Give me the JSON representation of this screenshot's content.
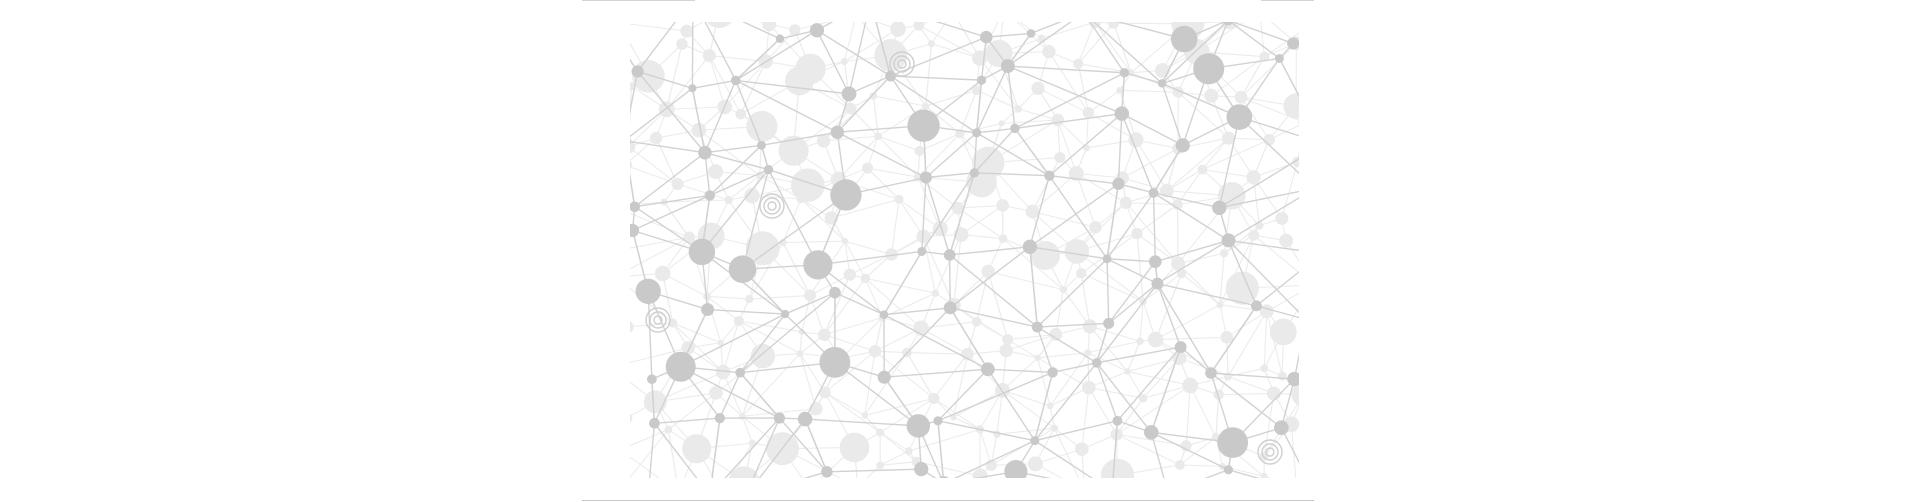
{
  "image": {
    "subject": "network-mesh-illustration",
    "colors": {
      "background": "#ffffff",
      "node": "#c9c9c9",
      "node_faint": "#eaeaea",
      "edge": "#d2d2d2",
      "edge_faint": "#ececec",
      "rule": "#d4d4d4"
    }
  }
}
